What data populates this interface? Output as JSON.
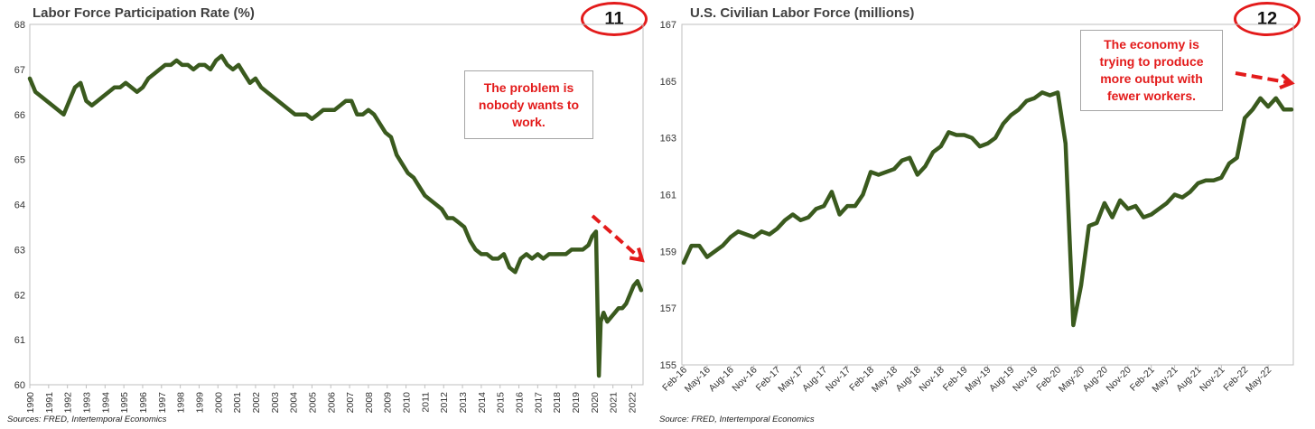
{
  "chart_data": [
    {
      "type": "line",
      "title": "Labor Force Participation Rate (%)",
      "source": "Sources: FRED, Intertemporal Economics",
      "badge": "11",
      "annotation": "The problem is nobody wants to work.",
      "ylim": [
        60,
        68
      ],
      "yticks": [
        "60",
        "61",
        "62",
        "63",
        "64",
        "65",
        "66",
        "67",
        "68"
      ],
      "xlim": [
        1990,
        2022.6
      ],
      "xticks": [
        "1990",
        "1991",
        "1992",
        "1993",
        "1994",
        "1995",
        "1996",
        "1997",
        "1998",
        "1999",
        "2000",
        "2001",
        "2002",
        "2003",
        "2004",
        "2005",
        "2006",
        "2007",
        "2008",
        "2009",
        "2010",
        "2011",
        "2012",
        "2013",
        "2014",
        "2015",
        "2016",
        "2017",
        "2018",
        "2019",
        "2020",
        "2021",
        "2022"
      ],
      "grid": false,
      "line_color": "#3a5a1e",
      "arrow_color": "#e31b1b",
      "series": [
        {
          "x": [
            1990,
            1990.3,
            1990.6,
            1990.9,
            1991.2,
            1991.5,
            1991.8,
            1992.1,
            1992.4,
            1992.7,
            1993.0,
            1993.3,
            1993.6,
            1993.9,
            1994.2,
            1994.5,
            1994.8,
            1995.1,
            1995.4,
            1995.7,
            1996.0,
            1996.3,
            1996.6,
            1996.9,
            1997.2,
            1997.5,
            1997.8,
            1998.1,
            1998.4,
            1998.7,
            1999.0,
            1999.3,
            1999.6,
            1999.9,
            2000.2,
            2000.5,
            2000.8,
            2001.1,
            2001.4,
            2001.7,
            2002.0,
            2002.3,
            2002.6,
            2002.9,
            2003.2,
            2003.5,
            2003.8,
            2004.1,
            2004.4,
            2004.7,
            2005.0,
            2005.3,
            2005.6,
            2005.9,
            2006.2,
            2006.5,
            2006.8,
            2007.1,
            2007.4,
            2007.7,
            2008.0,
            2008.3,
            2008.6,
            2008.9,
            2009.2,
            2009.5,
            2009.8,
            2010.1,
            2010.4,
            2010.7,
            2011.0,
            2011.3,
            2011.6,
            2011.9,
            2012.2,
            2012.5,
            2012.8,
            2013.1,
            2013.4,
            2013.7,
            2014.0,
            2014.3,
            2014.6,
            2014.9,
            2015.2,
            2015.5,
            2015.8,
            2016.1,
            2016.4,
            2016.7,
            2017.0,
            2017.3,
            2017.6,
            2017.9,
            2018.2,
            2018.5,
            2018.8,
            2019.1,
            2019.4,
            2019.7,
            2019.9,
            2020.1,
            2020.25,
            2020.35,
            2020.5,
            2020.7,
            2020.9,
            2021.1,
            2021.3,
            2021.5,
            2021.7,
            2021.9,
            2022.1,
            2022.3,
            2022.5
          ],
          "values": [
            66.8,
            66.5,
            66.4,
            66.3,
            66.2,
            66.1,
            66.0,
            66.3,
            66.6,
            66.7,
            66.3,
            66.2,
            66.3,
            66.4,
            66.5,
            66.6,
            66.6,
            66.7,
            66.6,
            66.5,
            66.6,
            66.8,
            66.9,
            67.0,
            67.1,
            67.1,
            67.2,
            67.1,
            67.1,
            67.0,
            67.1,
            67.1,
            67.0,
            67.2,
            67.3,
            67.1,
            67.0,
            67.1,
            66.9,
            66.7,
            66.8,
            66.6,
            66.5,
            66.4,
            66.3,
            66.2,
            66.1,
            66.0,
            66.0,
            66.0,
            65.9,
            66.0,
            66.1,
            66.1,
            66.1,
            66.2,
            66.3,
            66.3,
            66.0,
            66.0,
            66.1,
            66.0,
            65.8,
            65.6,
            65.5,
            65.1,
            64.9,
            64.7,
            64.6,
            64.4,
            64.2,
            64.1,
            64.0,
            63.9,
            63.7,
            63.7,
            63.6,
            63.5,
            63.2,
            63.0,
            62.9,
            62.9,
            62.8,
            62.8,
            62.9,
            62.6,
            62.5,
            62.8,
            62.9,
            62.8,
            62.9,
            62.8,
            62.9,
            62.9,
            62.9,
            62.9,
            63.0,
            63.0,
            63.0,
            63.1,
            63.3,
            63.4,
            60.2,
            61.4,
            61.6,
            61.4,
            61.5,
            61.6,
            61.7,
            61.7,
            61.8,
            62.0,
            62.2,
            62.3,
            62.1
          ]
        }
      ]
    },
    {
      "type": "line",
      "title": "U.S. Civilian Labor Force (millions)",
      "source": "Source: FRED, Intertemporal Economics",
      "badge": "12",
      "annotation": "The economy is trying to produce more output with fewer workers.",
      "ylim": [
        155,
        167
      ],
      "yticks": [
        "155",
        "157",
        "159",
        "161",
        "163",
        "165",
        "167"
      ],
      "xticks": [
        "Feb-16",
        "May-16",
        "Aug-16",
        "Nov-16",
        "Feb-17",
        "May-17",
        "Aug-17",
        "Nov-17",
        "Feb-18",
        "May-18",
        "Aug-18",
        "Nov-18",
        "Feb-19",
        "May-19",
        "Aug-19",
        "Nov-19",
        "Feb-20",
        "May-20",
        "Aug-20",
        "Nov-20",
        "Feb-21",
        "May-21",
        "Aug-21",
        "Nov-21",
        "Feb-22",
        "May-22"
      ],
      "grid": false,
      "line_color": "#3a5a1e",
      "arrow_color": "#e31b1b",
      "series": [
        {
          "values": [
            158.6,
            159.2,
            159.2,
            158.8,
            159.0,
            159.2,
            159.5,
            159.7,
            159.6,
            159.5,
            159.7,
            159.6,
            159.8,
            160.1,
            160.3,
            160.1,
            160.2,
            160.5,
            160.6,
            161.1,
            160.3,
            160.6,
            160.6,
            161.0,
            161.8,
            161.7,
            161.8,
            161.9,
            162.2,
            162.3,
            161.7,
            162.0,
            162.5,
            162.7,
            163.2,
            163.1,
            163.1,
            163.0,
            162.7,
            162.8,
            163.0,
            163.5,
            163.8,
            164.0,
            164.3,
            164.4,
            164.6,
            164.5,
            164.6,
            162.8,
            156.4,
            157.8,
            159.9,
            160.0,
            160.7,
            160.2,
            160.8,
            160.5,
            160.6,
            160.2,
            160.3,
            160.5,
            160.7,
            161.0,
            160.9,
            161.1,
            161.4,
            161.5,
            161.5,
            161.6,
            162.1,
            162.3,
            163.7,
            164.0,
            164.4,
            164.1,
            164.4,
            164.0,
            164.0
          ]
        }
      ]
    }
  ]
}
